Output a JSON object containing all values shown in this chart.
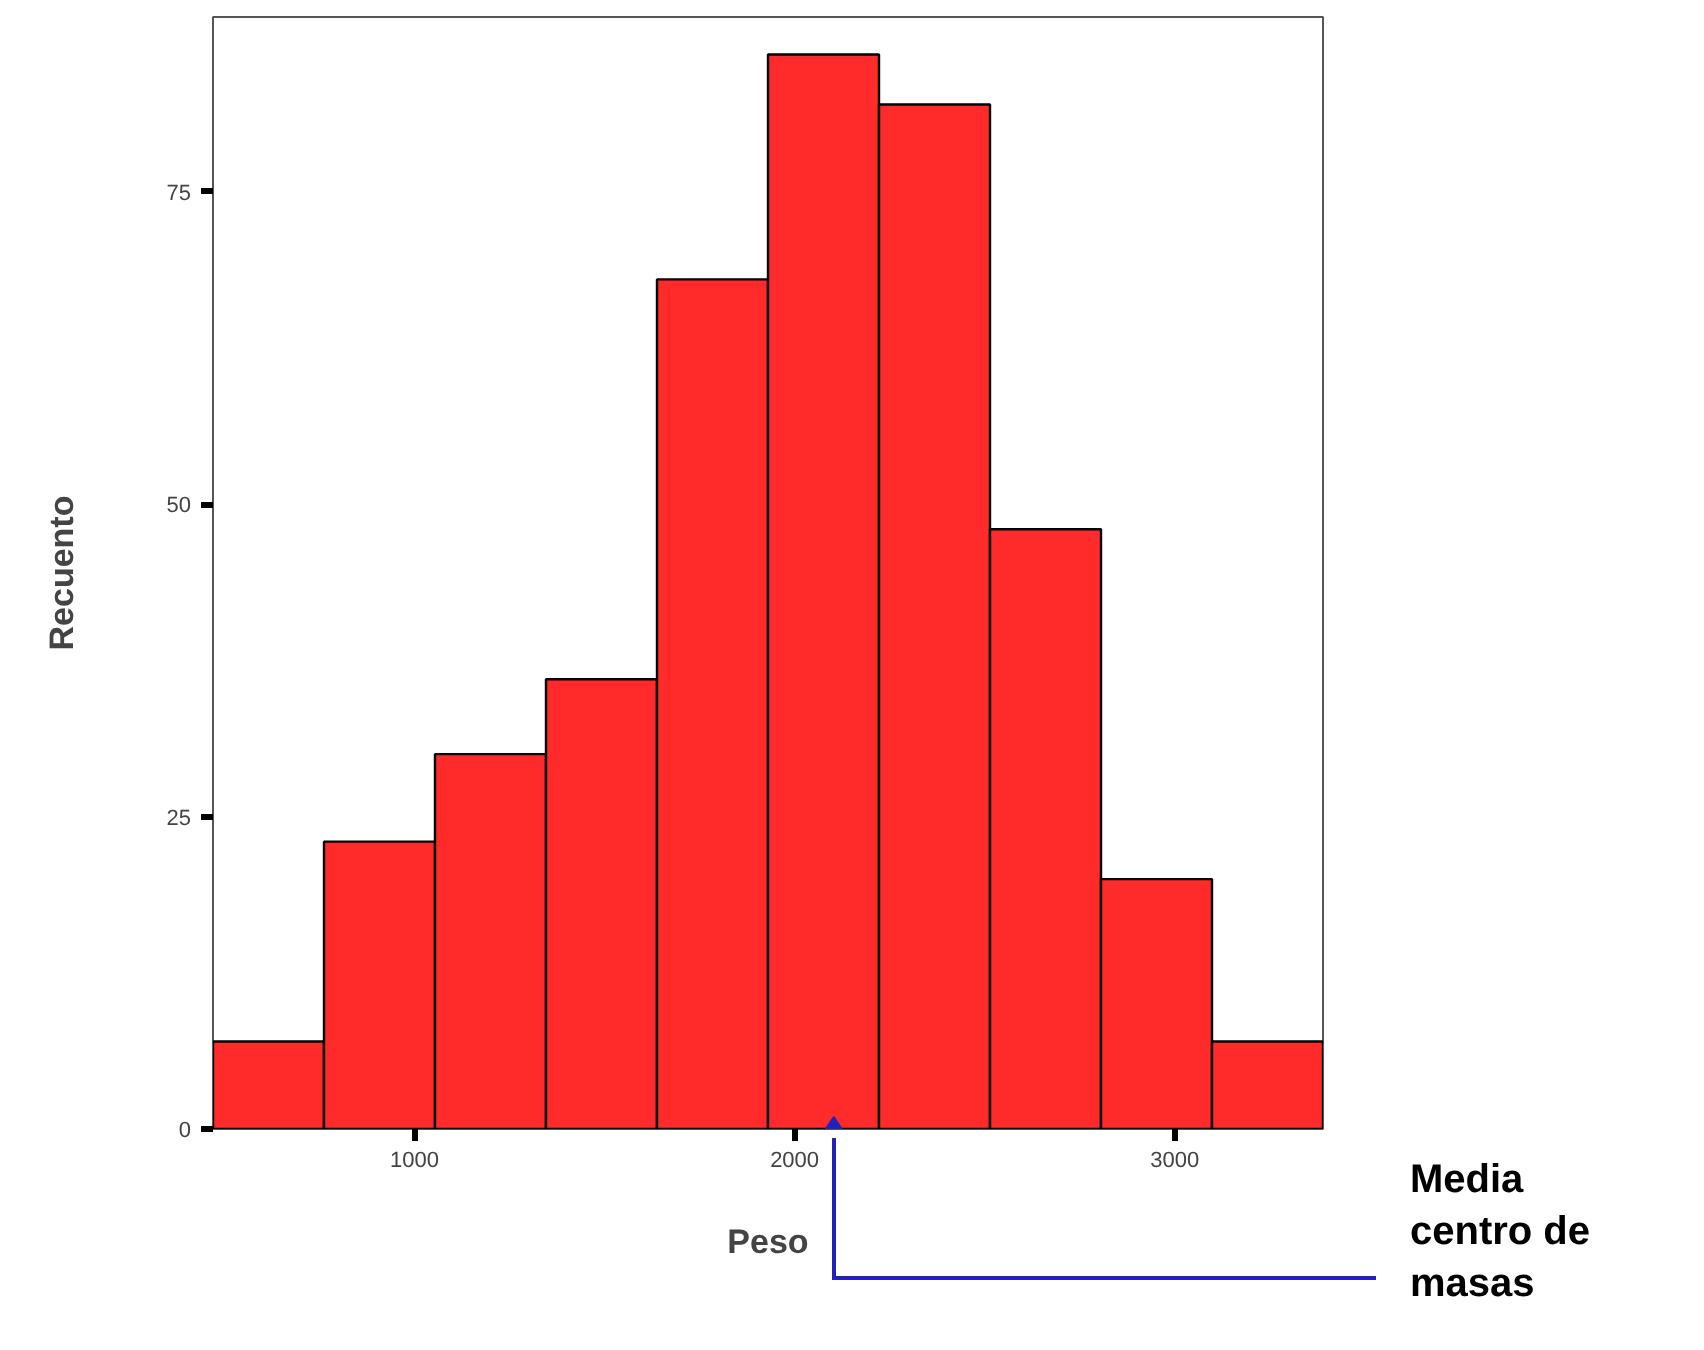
{
  "chart_data": {
    "type": "histogram",
    "xlabel": "Peso",
    "ylabel": "Recuento",
    "bins": [
      470,
      762,
      1054,
      1346,
      1638,
      1930,
      2222,
      2514,
      2806,
      3098,
      3390
    ],
    "values": [
      7,
      23,
      30,
      36,
      68,
      86,
      82,
      48,
      20,
      7
    ],
    "color": "#ff2a2a",
    "series": [
      {
        "type": "scatter",
        "x": [
          2103
        ],
        "values": [
          0
        ],
        "color": "#2222bb",
        "marker": "diamond"
      }
    ],
    "xlim": [
      470,
      3390
    ],
    "ylim": [
      0,
      89
    ],
    "xticks": [
      1000,
      2000,
      3000
    ],
    "yticks": [
      0,
      25,
      50,
      75
    ],
    "grid": false,
    "annotations": [
      "Media centro de masas"
    ]
  }
}
